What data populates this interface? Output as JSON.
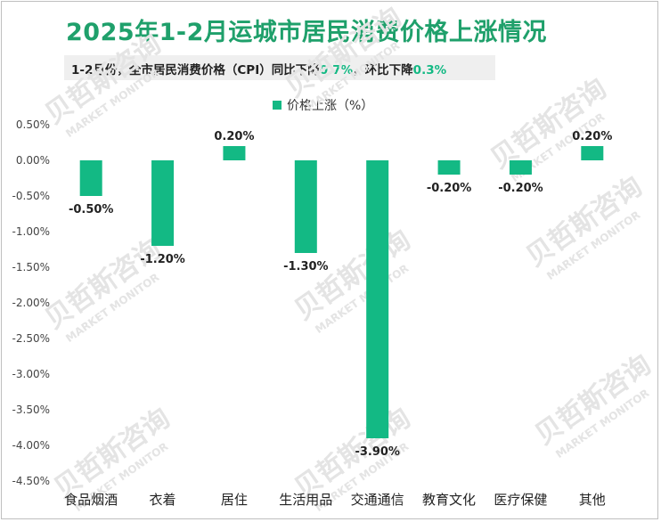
{
  "title": "2025年1-2月运城市居民消费价格上涨情况",
  "subtitle": {
    "prefix": "1-2月份，全市居民消费价格（CPI）同比下降",
    "yoy_value": "0.7%",
    "middle": "，环比下降",
    "mom_value": "0.3%"
  },
  "watermark": {
    "cn": "贝哲斯咨询",
    "en": "MARKET MONITOR"
  },
  "colors": {
    "bar": "#13b984",
    "title": "#1fa06b",
    "highlight": "#13b984"
  },
  "chart_data": {
    "type": "bar",
    "categories": [
      "食品烟酒",
      "衣着",
      "居住",
      "生活用品",
      "交通通信",
      "教育文化",
      "医疗保健",
      "其他"
    ],
    "series": [
      {
        "name": "价格上涨（%）",
        "values": [
          -0.5,
          -1.2,
          0.2,
          -1.3,
          -3.9,
          -0.2,
          -0.2,
          0.2
        ]
      }
    ],
    "data_labels": [
      "-0.50%",
      "-1.20%",
      "0.20%",
      "-1.30%",
      "-3.90%",
      "-0.20%",
      "-0.20%",
      "0.20%"
    ],
    "ylim": [
      -4.5,
      0.5
    ],
    "yticks": [
      "0.50%",
      "0.00%",
      "-0.50%",
      "-1.00%",
      "-1.50%",
      "-2.00%",
      "-2.50%",
      "-3.00%",
      "-3.50%",
      "-4.00%",
      "-4.50%"
    ],
    "ytick_values": [
      0.5,
      0,
      -0.5,
      -1.0,
      -1.5,
      -2.0,
      -2.5,
      -3.0,
      -3.5,
      -4.0,
      -4.5
    ],
    "legend_position": "top-center",
    "grid": false
  }
}
